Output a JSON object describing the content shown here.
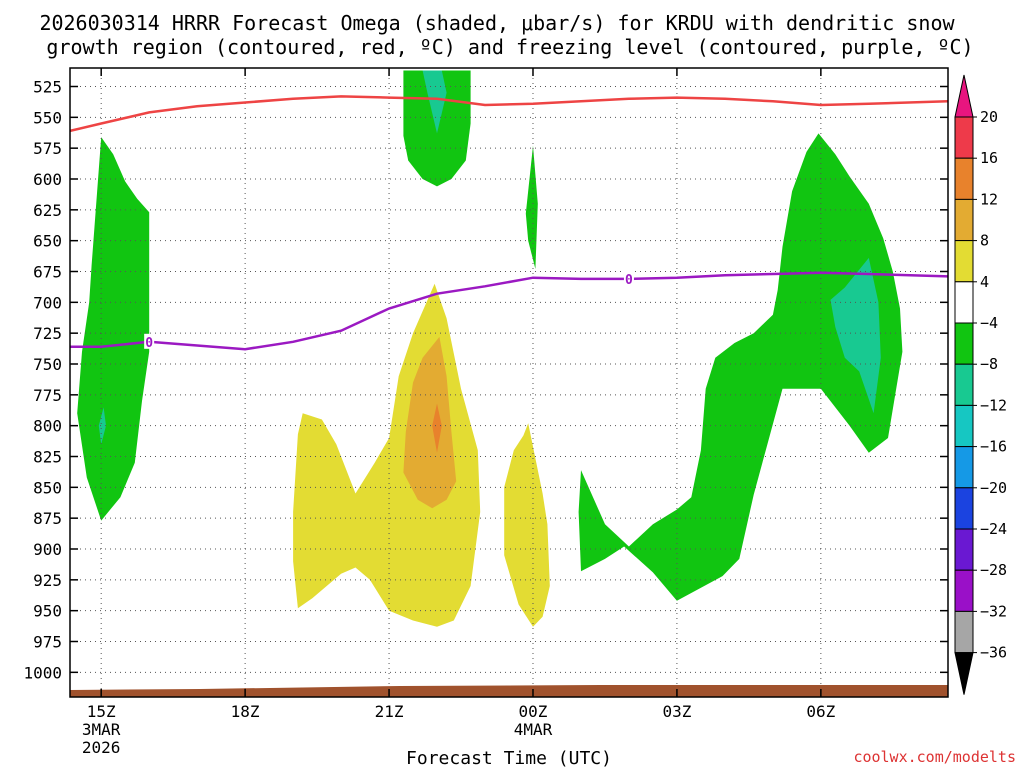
{
  "chart_data": {
    "type": "time-height contour",
    "title_line1": "2026030314 HRRR Forecast Omega (shaded, μbar/s) for KRDU with dendritic snow",
    "title_line2": "growth region (contoured, red, ºC) and freezing level (contoured, purple, ºC)",
    "xlabel": "Forecast Time (UTC)",
    "credit": "coolwx.com/modelts",
    "x_range_hours": [
      14.35,
      32.65
    ],
    "y_range_mb": [
      1020,
      510
    ],
    "y_ticks": [
      525,
      550,
      575,
      600,
      625,
      650,
      675,
      700,
      725,
      750,
      775,
      800,
      825,
      850,
      875,
      900,
      925,
      950,
      975,
      1000
    ],
    "x_ticks": [
      {
        "hour": 15,
        "label": "15Z",
        "sub1": "3MAR",
        "sub2": "2026"
      },
      {
        "hour": 18,
        "label": "18Z",
        "sub1": "",
        "sub2": ""
      },
      {
        "hour": 21,
        "label": "21Z",
        "sub1": "",
        "sub2": ""
      },
      {
        "hour": 24,
        "label": "00Z",
        "sub1": "4MAR",
        "sub2": ""
      },
      {
        "hour": 27,
        "label": "03Z",
        "sub1": "",
        "sub2": ""
      },
      {
        "hour": 30,
        "label": "06Z",
        "sub1": "",
        "sub2": ""
      }
    ],
    "colorbar": {
      "labels": [
        "20",
        "16",
        "12",
        "8",
        "4",
        "−4",
        "−8",
        "−12",
        "−16",
        "−20",
        "−24",
        "−28",
        "−32",
        "−36"
      ],
      "colors": [
        "#ee3a4a",
        "#e8822c",
        "#e3ab32",
        "#e3dc33",
        "#ffffff",
        "#11c511",
        "#18c991",
        "#16c7c2",
        "#1599e6",
        "#1b43e0",
        "#6a18d2",
        "#9a10c8",
        "#a6a6a6"
      ],
      "top_arrow_color": "#e8157f",
      "bottom_arrow_color": "#000000"
    },
    "dendritic_line_color": "#ee4444",
    "dendritic_line": [
      [
        14.35,
        561
      ],
      [
        15.0,
        555
      ],
      [
        16.0,
        546
      ],
      [
        17.0,
        541
      ],
      [
        18.0,
        538
      ],
      [
        19.0,
        535
      ],
      [
        20.0,
        533
      ],
      [
        21.0,
        534
      ],
      [
        22.0,
        535
      ],
      [
        23.0,
        540
      ],
      [
        24.0,
        539
      ],
      [
        25.0,
        537
      ],
      [
        26.0,
        535
      ],
      [
        27.0,
        534
      ],
      [
        28.0,
        535
      ],
      [
        29.0,
        537
      ],
      [
        30.0,
        540
      ],
      [
        31.0,
        539
      ],
      [
        32.65,
        537
      ]
    ],
    "freezing_line_color": "#9b19c2",
    "freezing_line": [
      [
        14.35,
        736
      ],
      [
        15.0,
        736
      ],
      [
        16.0,
        732
      ],
      [
        17.0,
        735
      ],
      [
        18.0,
        738
      ],
      [
        19.0,
        732
      ],
      [
        20.0,
        723
      ],
      [
        21.0,
        705
      ],
      [
        22.0,
        693
      ],
      [
        23.0,
        687
      ],
      [
        24.0,
        680
      ],
      [
        25.0,
        681
      ],
      [
        26.0,
        681
      ],
      [
        27.0,
        680
      ],
      [
        28.0,
        678
      ],
      [
        29.0,
        677
      ],
      [
        30.0,
        676
      ],
      [
        31.0,
        677
      ],
      [
        32.65,
        679
      ]
    ],
    "contour_labels": [
      {
        "text": "0",
        "line": "freezing",
        "hour": 16.0,
        "mb": 732
      },
      {
        "text": "0",
        "line": "freezing",
        "hour": 26.0,
        "mb": 681
      }
    ],
    "omega_regions": [
      {
        "color": "#11c511",
        "points": [
          [
            14.8,
            670
          ],
          [
            15.0,
            566
          ],
          [
            15.25,
            580
          ],
          [
            15.5,
            602
          ],
          [
            15.75,
            616
          ],
          [
            16.0,
            627
          ],
          [
            16.0,
            740
          ],
          [
            15.85,
            780
          ],
          [
            15.7,
            830
          ],
          [
            15.4,
            858
          ],
          [
            15.0,
            877
          ],
          [
            14.7,
            842
          ],
          [
            14.5,
            790
          ],
          [
            14.6,
            740
          ],
          [
            14.75,
            700
          ]
        ]
      },
      {
        "color": "#18c991",
        "points": [
          [
            15.05,
            785
          ],
          [
            15.1,
            800
          ],
          [
            15.0,
            815
          ],
          [
            14.95,
            800
          ]
        ]
      },
      {
        "color": "#11c511",
        "points": [
          [
            21.3,
            512
          ],
          [
            22.7,
            512
          ],
          [
            22.7,
            555
          ],
          [
            22.6,
            585
          ],
          [
            22.3,
            600
          ],
          [
            22.0,
            606
          ],
          [
            21.7,
            600
          ],
          [
            21.4,
            585
          ],
          [
            21.3,
            565
          ]
        ]
      },
      {
        "color": "#18c991",
        "points": [
          [
            21.7,
            512
          ],
          [
            22.1,
            512
          ],
          [
            22.2,
            530
          ],
          [
            22.0,
            563
          ],
          [
            21.8,
            530
          ]
        ]
      },
      {
        "color": "#11c511",
        "points": [
          [
            23.85,
            628
          ],
          [
            24.0,
            573
          ],
          [
            24.1,
            620
          ],
          [
            24.05,
            673
          ],
          [
            23.9,
            650
          ]
        ]
      },
      {
        "color": "#11c511",
        "points": [
          [
            29.2,
            655
          ],
          [
            29.4,
            610
          ],
          [
            29.7,
            578
          ],
          [
            29.95,
            563
          ],
          [
            30.3,
            580
          ],
          [
            30.6,
            598
          ],
          [
            31.0,
            620
          ],
          [
            31.3,
            648
          ],
          [
            31.5,
            675
          ],
          [
            31.65,
            705
          ],
          [
            31.7,
            740
          ],
          [
            31.55,
            775
          ],
          [
            31.4,
            810
          ],
          [
            31.0,
            822
          ],
          [
            30.6,
            800
          ],
          [
            30.0,
            770
          ],
          [
            29.2,
            770
          ],
          [
            28.6,
            856
          ],
          [
            28.3,
            908
          ],
          [
            27.95,
            922
          ],
          [
            27.0,
            942
          ],
          [
            26.5,
            919
          ],
          [
            25.9,
            898
          ],
          [
            25.5,
            908
          ],
          [
            25.0,
            918
          ],
          [
            24.95,
            870
          ],
          [
            25.0,
            836
          ],
          [
            25.5,
            880
          ],
          [
            26.0,
            898
          ],
          [
            26.5,
            880
          ],
          [
            27.0,
            868
          ],
          [
            27.3,
            858
          ],
          [
            27.5,
            820
          ],
          [
            27.6,
            770
          ],
          [
            27.8,
            745
          ],
          [
            28.2,
            733
          ],
          [
            28.6,
            725
          ],
          [
            29.0,
            710
          ],
          [
            29.1,
            690
          ]
        ]
      },
      {
        "color": "#18c991",
        "points": [
          [
            30.2,
            698
          ],
          [
            30.5,
            688
          ],
          [
            31.0,
            664
          ],
          [
            31.2,
            700
          ],
          [
            31.25,
            745
          ],
          [
            31.1,
            790
          ],
          [
            30.8,
            756
          ],
          [
            30.5,
            745
          ],
          [
            30.3,
            720
          ]
        ]
      },
      {
        "color": "#e3dc33",
        "points": [
          [
            19.0,
            870
          ],
          [
            19.1,
            807
          ],
          [
            19.2,
            790
          ],
          [
            19.6,
            795
          ],
          [
            19.9,
            815
          ],
          [
            20.3,
            855
          ],
          [
            20.7,
            830
          ],
          [
            21.0,
            810
          ],
          [
            21.2,
            760
          ],
          [
            21.5,
            725
          ],
          [
            21.95,
            685
          ],
          [
            22.2,
            713
          ],
          [
            22.5,
            770
          ],
          [
            22.85,
            820
          ],
          [
            22.9,
            870
          ],
          [
            22.7,
            930
          ],
          [
            22.35,
            958
          ],
          [
            22.0,
            963
          ],
          [
            21.5,
            958
          ],
          [
            21.0,
            950
          ],
          [
            20.6,
            925
          ],
          [
            20.3,
            915
          ],
          [
            20.0,
            920
          ],
          [
            19.4,
            940
          ],
          [
            19.1,
            948
          ],
          [
            19.0,
            910
          ]
        ]
      },
      {
        "color": "#e3ab32",
        "points": [
          [
            21.35,
            805
          ],
          [
            21.5,
            765
          ],
          [
            21.7,
            745
          ],
          [
            22.05,
            728
          ],
          [
            22.2,
            760
          ],
          [
            22.3,
            805
          ],
          [
            22.4,
            845
          ],
          [
            22.2,
            860
          ],
          [
            21.9,
            867
          ],
          [
            21.6,
            860
          ],
          [
            21.3,
            838
          ]
        ]
      },
      {
        "color": "#e8822c",
        "points": [
          [
            21.9,
            800
          ],
          [
            22.0,
            782
          ],
          [
            22.1,
            800
          ],
          [
            22.0,
            822
          ]
        ]
      },
      {
        "color": "#e3dc33",
        "points": [
          [
            23.4,
            850
          ],
          [
            23.6,
            820
          ],
          [
            23.8,
            808
          ],
          [
            23.9,
            798
          ],
          [
            24.2,
            855
          ],
          [
            24.3,
            880
          ],
          [
            24.35,
            930
          ],
          [
            24.2,
            955
          ],
          [
            24.0,
            963
          ],
          [
            23.7,
            945
          ],
          [
            23.4,
            905
          ]
        ]
      }
    ],
    "terrain_color": "#a0522d"
  }
}
